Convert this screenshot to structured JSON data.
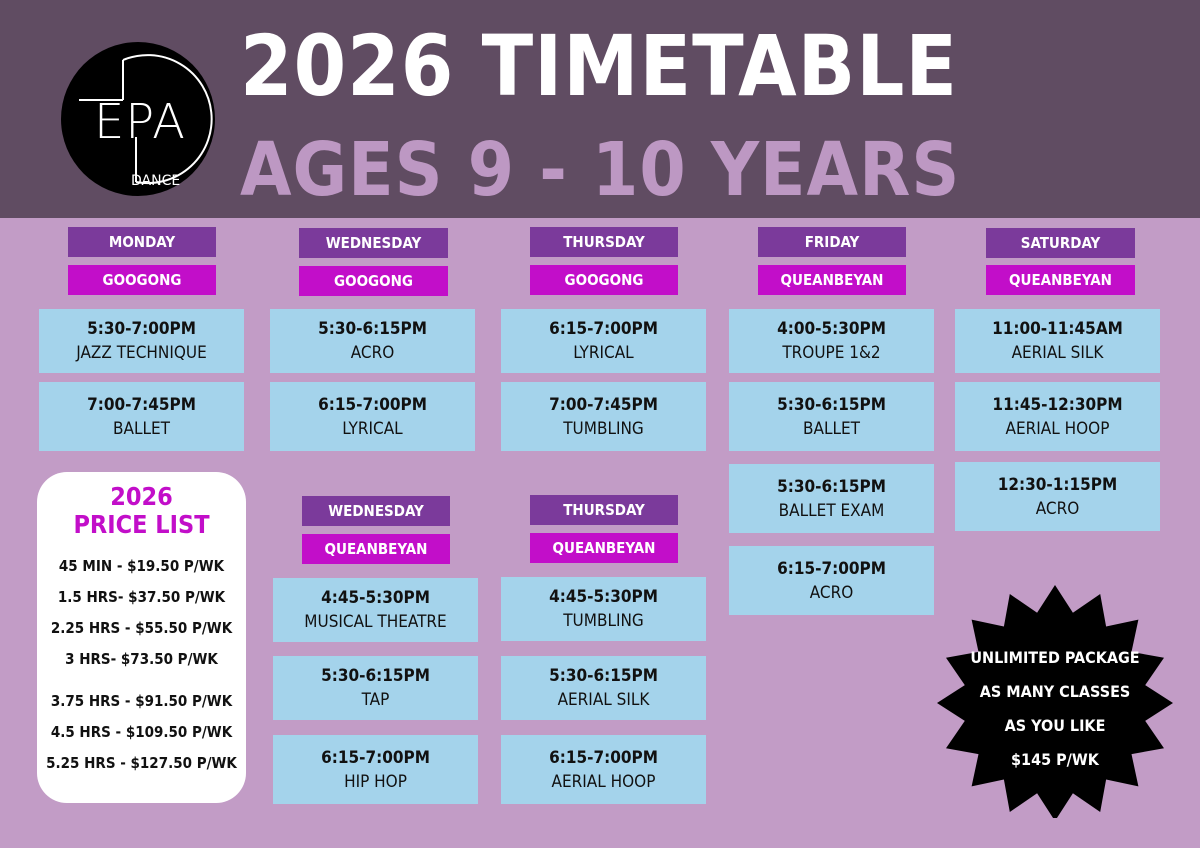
{
  "logo": {
    "text": "EPA",
    "subtext": "DANCE"
  },
  "title": "2026 TIMETABLE",
  "subtitle": "AGES 9 - 10 YEARS",
  "columns": [
    {
      "day": "MONDAY",
      "location": "GOOGONG",
      "classes": [
        {
          "time": "5:30-7:00PM",
          "name": "JAZZ TECHNIQUE"
        },
        {
          "time": "7:00-7:45PM",
          "name": "BALLET"
        }
      ]
    },
    {
      "day": "WEDNESDAY",
      "location": "GOOGONG",
      "classes": [
        {
          "time": "5:30-6:15PM",
          "name": "ACRO"
        },
        {
          "time": "6:15-7:00PM",
          "name": "LYRICAL"
        }
      ]
    },
    {
      "day": "THURSDAY",
      "location": "GOOGONG",
      "classes": [
        {
          "time": "6:15-7:00PM",
          "name": "LYRICAL"
        },
        {
          "time": "7:00-7:45PM",
          "name": "TUMBLING"
        }
      ]
    },
    {
      "day": "FRIDAY",
      "location": "QUEANBEYAN",
      "classes": [
        {
          "time": "4:00-5:30PM",
          "name": "TROUPE 1&2"
        },
        {
          "time": "5:30-6:15PM",
          "name": "BALLET"
        },
        {
          "time": "5:30-6:15PM",
          "name": "BALLET EXAM"
        },
        {
          "time": "6:15-7:00PM",
          "name": "ACRO"
        }
      ]
    },
    {
      "day": "SATURDAY",
      "location": "QUEANBEYAN",
      "classes": [
        {
          "time": "11:00-11:45AM",
          "name": "AERIAL SILK"
        },
        {
          "time": "11:45-12:30PM",
          "name": "AERIAL HOOP"
        },
        {
          "time": "12:30-1:15PM",
          "name": "ACRO"
        }
      ]
    },
    {
      "day": "WEDNESDAY",
      "location": "QUEANBEYAN",
      "classes": [
        {
          "time": "4:45-5:30PM",
          "name": "MUSICAL THEATRE"
        },
        {
          "time": "5:30-6:15PM",
          "name": "TAP"
        },
        {
          "time": "6:15-7:00PM",
          "name": "HIP HOP"
        }
      ]
    },
    {
      "day": "THURSDAY",
      "location": "QUEANBEYAN",
      "classes": [
        {
          "time": "4:45-5:30PM",
          "name": "TUMBLING"
        },
        {
          "time": "5:30-6:15PM",
          "name": "AERIAL SILK"
        },
        {
          "time": "6:15-7:00PM",
          "name": "AERIAL HOOP"
        }
      ]
    }
  ],
  "price_list": {
    "title_line1": "2026",
    "title_line2": "PRICE LIST",
    "items": [
      "45 MIN - $19.50 P/WK",
      "1.5 HRS- $37.50 P/WK",
      "2.25 HRS - $55.50 P/WK",
      "3 HRS- $73.50 P/WK",
      "3.75 HRS - $91.50 P/WK",
      "4.5 HRS - $109.50 P/WK",
      "5.25 HRS - $127.50 P/WK"
    ]
  },
  "unlimited": {
    "lines": [
      "UNLIMITED PACKAGE",
      "AS MANY CLASSES",
      "AS YOU LIKE",
      "$145 P/WK"
    ]
  },
  "colors": {
    "header_bg": "#604c62",
    "page_bg": "#c29cc6",
    "day_label": "#7b3a9b",
    "location_label": "#c20ec9",
    "class_box": "#a4d3eb",
    "price_title": "#c20ec9"
  }
}
